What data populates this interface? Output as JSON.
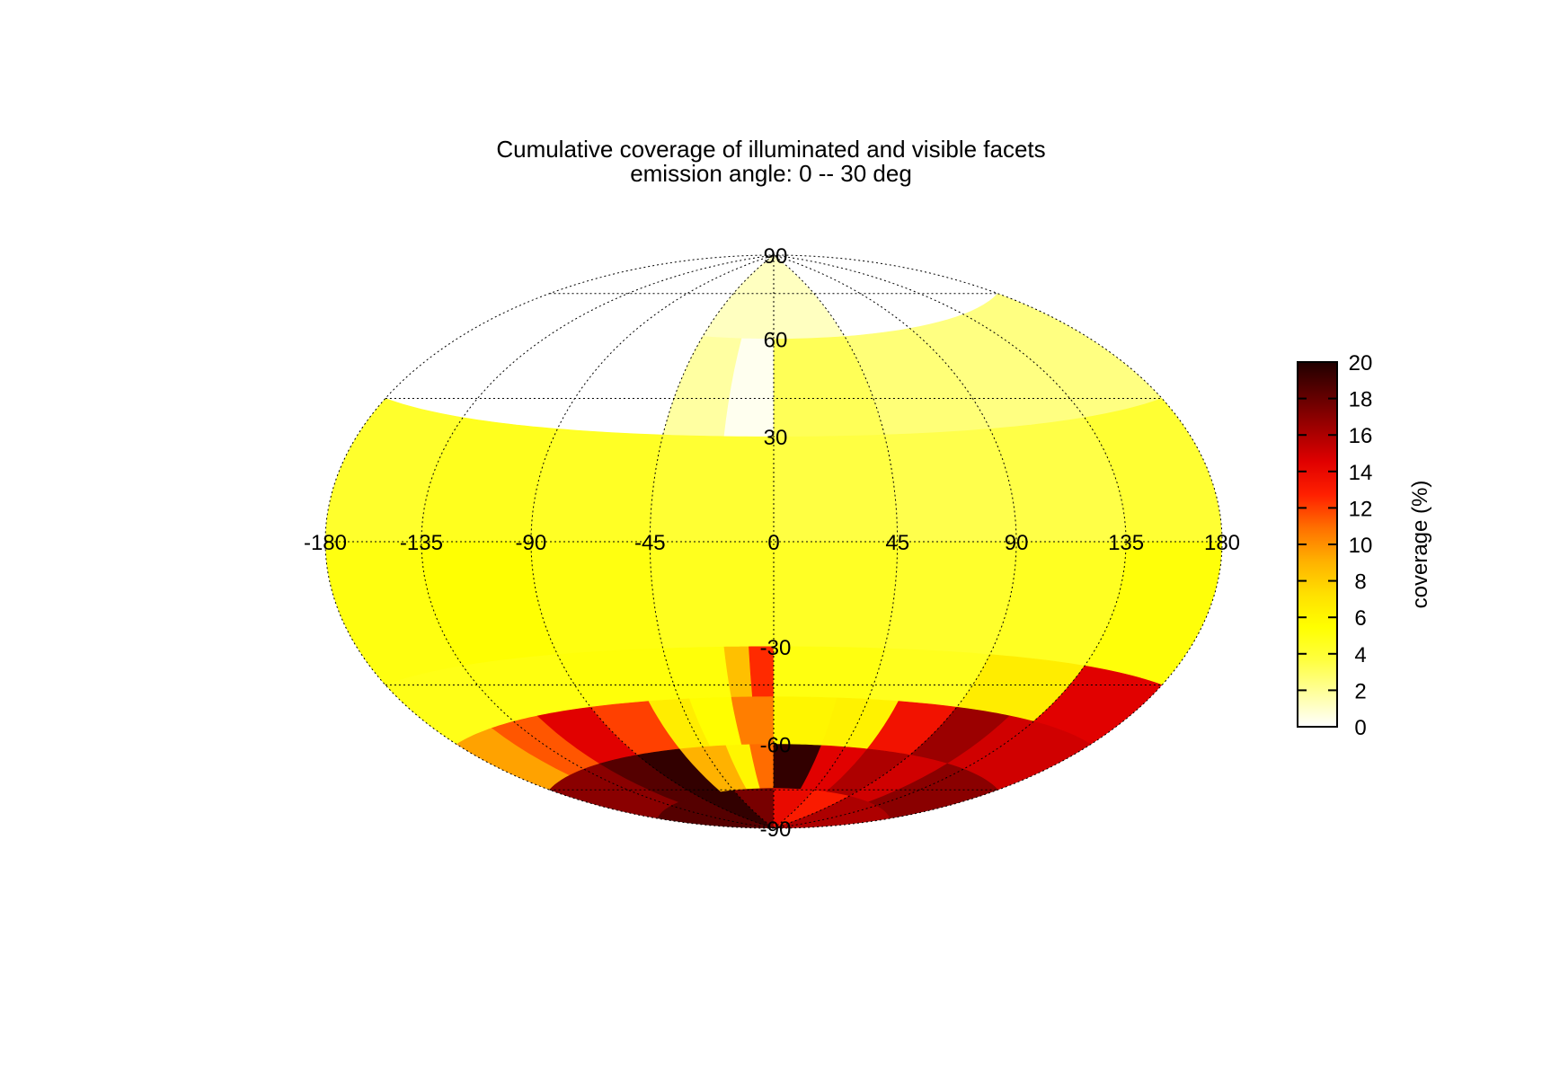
{
  "chart_data": {
    "type": "heatmap",
    "projection": "hammer-aitoff",
    "title": "Cumulative coverage of illuminated and visible facets",
    "subtitle": "emission angle:  0 -- 30 deg",
    "longitude_ticks": [
      -180,
      -135,
      -90,
      -45,
      0,
      45,
      90,
      135,
      180
    ],
    "latitude_ticks": [
      90,
      60,
      30,
      -30,
      -60,
      -90
    ],
    "xlim": [
      -180,
      180
    ],
    "ylim": [
      -90,
      90
    ],
    "colorbar": {
      "label": "coverage (%)",
      "range": [
        0,
        20
      ],
      "ticks": [
        0,
        2,
        4,
        6,
        8,
        10,
        12,
        14,
        16,
        18,
        20
      ],
      "colormap": [
        "#ffffff",
        "#ffffa0",
        "#ffff40",
        "#ffff00",
        "#ffe000",
        "#ffb000",
        "#ff7000",
        "#ff2000",
        "#e00000",
        "#a00000",
        "#600000",
        "#200000"
      ]
    },
    "lat_bands": [
      {
        "lat_range": [
          60,
          90
        ],
        "lon_breaks": [
          -180,
          -45,
          45,
          180
        ],
        "values": [
          0.0,
          1.2,
          0.0
        ]
      },
      {
        "lat_range": [
          30,
          60
        ],
        "lon_breaks": [
          -180,
          -45,
          -20,
          0,
          45,
          90,
          180
        ],
        "values": [
          0.0,
          1.8,
          0.3,
          3.2,
          2.6,
          2.4
        ]
      },
      {
        "lat_range": [
          0,
          30
        ],
        "lon_breaks": [
          -180,
          -135,
          -90,
          -45,
          0,
          45,
          90,
          135,
          180
        ],
        "values": [
          4.2,
          4.6,
          4.4,
          4.0,
          3.6,
          3.4,
          3.5,
          4.0
        ]
      },
      {
        "lat_range": [
          -30,
          0
        ],
        "lon_breaks": [
          -180,
          -135,
          -90,
          -45,
          0,
          45,
          90,
          135,
          180
        ],
        "values": [
          5.0,
          5.4,
          5.0,
          4.6,
          4.4,
          4.2,
          4.5,
          5.2
        ]
      },
      {
        "lat_range": [
          -45,
          -30
        ],
        "lon_breaks": [
          -180,
          -135,
          -90,
          -45,
          -20,
          -10,
          0,
          45,
          90,
          135,
          180
        ],
        "values": [
          4.8,
          5.0,
          5.2,
          5.2,
          8.5,
          12.5,
          5.0,
          4.6,
          6.5,
          14.5
        ]
      },
      {
        "lat_range": [
          -60,
          -45
        ],
        "lon_breaks": [
          -180,
          -150,
          -120,
          -90,
          -60,
          -40,
          -20,
          0,
          30,
          60,
          90,
          120,
          180
        ],
        "values": [
          9.5,
          11.5,
          14.5,
          12.0,
          6.5,
          5.5,
          10.5,
          6.0,
          6.2,
          13.5,
          16.5,
          15.0
        ]
      },
      {
        "lat_range": [
          -75,
          -60
        ],
        "lon_breaks": [
          -180,
          -120,
          -90,
          -60,
          -30,
          -15,
          0,
          30,
          60,
          90,
          120,
          180
        ],
        "values": [
          17.0,
          18.5,
          19.5,
          9.0,
          6.0,
          11.0,
          19.5,
          14.5,
          16.0,
          15.0,
          17.0
        ]
      },
      {
        "lat_range": [
          -90,
          -75
        ],
        "lon_breaks": [
          -180,
          -90,
          -45,
          0,
          45,
          90,
          180
        ],
        "values": [
          18.5,
          19.5,
          17.5,
          14.0,
          13.0,
          16.0
        ]
      }
    ]
  }
}
